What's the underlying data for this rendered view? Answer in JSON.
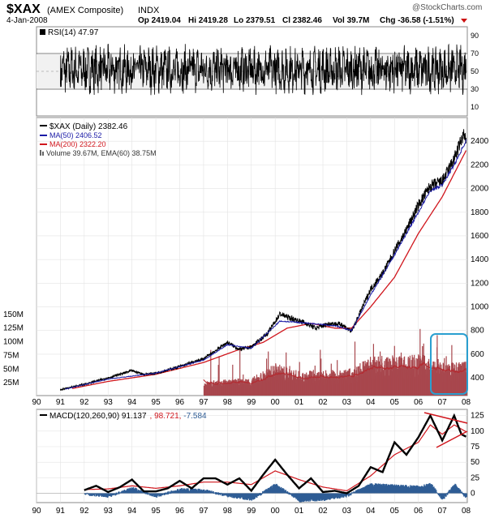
{
  "header": {
    "symbol": "$XAX",
    "name": "(AMEX Composite)",
    "suffix": "INDX",
    "brand": "@StockCharts.com",
    "date": "4-Jan-2008",
    "op": "Op 2419.04",
    "hi": "Hi 2419.28",
    "lo": "Lo 2379.51",
    "cl": "Cl 2382.46",
    "vol": "Vol 39.7M",
    "chg": "Chg -36.58 (-1.51%)"
  },
  "colors": {
    "price": "#000000",
    "ma50": "#1a1aa6",
    "ma200": "#d0161d",
    "volume": "#a8484e",
    "macd_hist": "#2f5d95",
    "highlight_box": "#2a9fd0",
    "gridline": "#e3e3e3",
    "rsi_band": "#dddddd",
    "rsi_fill": "#2a8a2a",
    "down_marker": "#cc1111"
  },
  "chart_data": [
    {
      "type": "line",
      "panel": "rsi",
      "title": "RSI(14) 47.97",
      "ylim": [
        0,
        100
      ],
      "yticks": [
        "10",
        "30",
        "50",
        "70",
        "90"
      ],
      "y_range_shown": [
        10,
        90
      ],
      "levels": [
        30,
        70
      ],
      "last_value": 47.97
    },
    {
      "type": "line",
      "panel": "price",
      "legend": [
        "$XAX (Daily) 2382.46",
        "MA(50) 2406.52",
        "MA(200) 2322.20",
        "Volume 39.67M, EMA(60) 38.75M"
      ],
      "x_categories": [
        "90",
        "91",
        "92",
        "93",
        "94",
        "95",
        "96",
        "97",
        "98",
        "99",
        "00",
        "01",
        "02",
        "03",
        "04",
        "05",
        "06",
        "07",
        "08"
      ],
      "ylim": [
        250,
        2600
      ],
      "yticks": [
        "400",
        "600",
        "800",
        "1000",
        "1200",
        "1400",
        "1600",
        "1800",
        "2000",
        "2200",
        "2400"
      ],
      "volume_ticks": [
        "25M",
        "50M",
        "75M",
        "100M",
        "125M",
        "150M"
      ],
      "volume_start": "97",
      "series": [
        {
          "name": "$XAX (Daily)",
          "x": [
            1991.0,
            1992.0,
            1993.0,
            1994.0,
            1994.5,
            1995.0,
            1996.0,
            1997.0,
            1997.5,
            1998.0,
            1998.5,
            1999.0,
            1999.7,
            2000.2,
            2000.7,
            2001.2,
            2001.7,
            2002.3,
            2002.8,
            2003.2,
            2004.0,
            2004.5,
            2005.0,
            2005.5,
            2006.0,
            2006.5,
            2007.0,
            2007.5,
            2007.9,
            2008.0
          ],
          "values": [
            300,
            345,
            400,
            460,
            430,
            440,
            495,
            560,
            630,
            700,
            640,
            660,
            780,
            940,
            900,
            870,
            820,
            860,
            850,
            790,
            1150,
            1280,
            1470,
            1650,
            1860,
            2020,
            2060,
            2250,
            2460,
            2382
          ]
        },
        {
          "name": "MA(50)",
          "x": [
            1991.2,
            1993.0,
            1995.0,
            1997.0,
            1998.0,
            1999.0,
            2000.2,
            2001.5,
            2002.5,
            2003.2,
            2004.0,
            2005.0,
            2006.0,
            2006.5,
            2007.0,
            2007.5,
            2008.0
          ],
          "values": [
            305,
            390,
            440,
            550,
            680,
            650,
            880,
            860,
            840,
            800,
            1100,
            1440,
            1800,
            1980,
            2030,
            2200,
            2406
          ]
        },
        {
          "name": "MA(200)",
          "x": [
            1991.5,
            1993.0,
            1995.0,
            1997.0,
            1998.5,
            1999.5,
            2000.5,
            2001.5,
            2002.5,
            2003.2,
            2004.0,
            2005.0,
            2006.0,
            2007.0,
            2008.0
          ],
          "values": [
            310,
            370,
            430,
            530,
            640,
            700,
            820,
            860,
            820,
            820,
            1000,
            1250,
            1620,
            1930,
            2322
          ]
        }
      ],
      "highlight": "07 - 08"
    },
    {
      "type": "line",
      "panel": "macd",
      "title": "MACD(120,260,90) 91.137, 98.721, -7.584",
      "legend": [
        "MACD(120,260,90) 91.137",
        "98.721",
        "-7.584"
      ],
      "x_categories": [
        "90",
        "91",
        "92",
        "93",
        "94",
        "95",
        "96",
        "97",
        "98",
        "99",
        "00",
        "01",
        "02",
        "03",
        "04",
        "05",
        "06",
        "07",
        "08"
      ],
      "ylim": [
        -15,
        135
      ],
      "yticks": [
        "0",
        "25",
        "50",
        "75",
        "100",
        "125"
      ],
      "series": [
        {
          "name": "MACD",
          "x": [
            1992.0,
            1992.5,
            1993.0,
            1993.5,
            1994.0,
            1994.5,
            1995.0,
            1995.5,
            1996.0,
            1996.5,
            1997.0,
            1997.5,
            1998.0,
            1998.5,
            1999.0,
            1999.5,
            2000.0,
            2000.5,
            2001.0,
            2001.5,
            2002.0,
            2002.5,
            2003.0,
            2003.5,
            2004.0,
            2004.5,
            2005.0,
            2005.5,
            2006.0,
            2006.5,
            2007.0,
            2007.5,
            2007.8,
            2008.0
          ],
          "values": [
            5,
            12,
            2,
            10,
            22,
            3,
            3,
            8,
            20,
            8,
            24,
            24,
            14,
            24,
            4,
            30,
            54,
            30,
            8,
            24,
            2,
            4,
            0,
            12,
            42,
            34,
            82,
            62,
            90,
            125,
            85,
            125,
            95,
            91
          ]
        },
        {
          "name": "Signal",
          "x": [
            1992.0,
            1993.0,
            1994.0,
            1995.0,
            1996.0,
            1997.0,
            1998.0,
            1999.0,
            2000.0,
            2001.0,
            2002.0,
            2003.0,
            2004.0,
            2005.0,
            2006.0,
            2006.5,
            2007.0,
            2007.5,
            2008.0
          ],
          "values": [
            6,
            7,
            12,
            8,
            12,
            18,
            18,
            14,
            36,
            22,
            10,
            4,
            28,
            62,
            82,
            110,
            95,
            110,
            99
          ]
        },
        {
          "name": "Histogram",
          "x": [
            1992.0,
            1993.0,
            1994.0,
            1995.0,
            1996.0,
            1997.0,
            1998.0,
            1999.0,
            2000.0,
            2001.0,
            2002.0,
            2003.0,
            2004.0,
            2005.0,
            2006.0,
            2006.5,
            2007.0,
            2007.5,
            2008.0
          ],
          "values": [
            -1,
            -5,
            8,
            -5,
            6,
            5,
            -4,
            -10,
            14,
            -12,
            -10,
            -4,
            14,
            12,
            10,
            15,
            -10,
            14,
            -8
          ]
        }
      ]
    }
  ]
}
